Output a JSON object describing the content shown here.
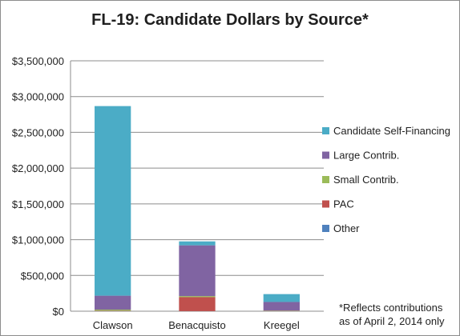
{
  "chart_data": {
    "type": "bar",
    "stacked": true,
    "title": "FL-19: Candidate Dollars by Source*",
    "categories": [
      "Clawson",
      "Benacquisto",
      "Kreegel"
    ],
    "series": [
      {
        "name": "Other",
        "color": "#4f81bd",
        "values": [
          2000,
          1000,
          1000
        ]
      },
      {
        "name": "PAC",
        "color": "#c0504d",
        "values": [
          5000,
          195000,
          3000
        ]
      },
      {
        "name": "Small Contrib.",
        "color": "#9bbb59",
        "values": [
          15000,
          15000,
          5000
        ]
      },
      {
        "name": "Large Contrib.",
        "color": "#8064a2",
        "values": [
          195000,
          710000,
          120000
        ]
      },
      {
        "name": "Candidate Self-Financing",
        "color": "#4bacc6",
        "values": [
          2650000,
          55000,
          110000
        ]
      }
    ],
    "ylim": [
      0,
      3500000
    ],
    "yticks": [
      "$0",
      "$500,000",
      "$1,000,000",
      "$1,500,000",
      "$2,000,000",
      "$2,500,000",
      "$3,000,000",
      "$3,500,000"
    ],
    "grid": true,
    "legend_position": "right",
    "note": "*Reflects contributions\nas of April 2, 2014 only"
  }
}
